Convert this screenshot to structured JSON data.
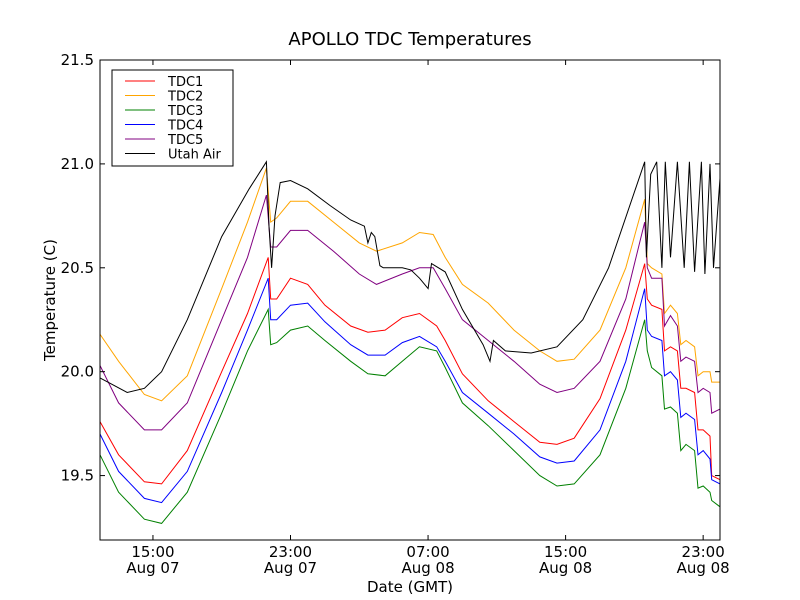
{
  "chart_data": {
    "type": "line",
    "title": "APOLLO TDC Temperatures",
    "xlabel": "Date (GMT)",
    "ylabel": "Temperature (C)",
    "x_units": "hours since Aug 07 00:00 GMT",
    "xlim": [
      11.92,
      47.98
    ],
    "ylim": [
      19.19,
      21.5
    ],
    "grid": false,
    "legend_position": "top-left",
    "x_ticks": [
      {
        "value": 15,
        "label_time": "15:00",
        "label_date": "Aug 07"
      },
      {
        "value": 23,
        "label_time": "23:00",
        "label_date": "Aug 07"
      },
      {
        "value": 31,
        "label_time": "07:00",
        "label_date": "Aug 08"
      },
      {
        "value": 39,
        "label_time": "15:00",
        "label_date": "Aug 08"
      },
      {
        "value": 47,
        "label_time": "23:00",
        "label_date": "Aug 08"
      }
    ],
    "y_ticks": [
      {
        "value": 19.5,
        "label": "19.5"
      },
      {
        "value": 20.0,
        "label": "20.0"
      },
      {
        "value": 20.5,
        "label": "20.5"
      },
      {
        "value": 21.0,
        "label": "21.0"
      },
      {
        "value": 21.5,
        "label": "21.5"
      }
    ],
    "series": [
      {
        "name": "TDC1",
        "color": "#ff0000",
        "x": [
          11.92,
          13.0,
          14.5,
          15.5,
          17.0,
          19.0,
          20.5,
          21.7,
          21.85,
          22.2,
          23.0,
          24.0,
          25.0,
          26.5,
          27.5,
          28.5,
          29.5,
          30.5,
          31.5,
          32.0,
          33.0,
          34.5,
          36.0,
          37.5,
          38.5,
          39.5,
          41.0,
          42.5,
          43.6,
          43.75,
          44.0,
          44.6,
          44.75,
          45.1,
          45.5,
          45.7,
          46.0,
          46.5,
          46.7,
          47.0,
          47.4,
          47.5,
          47.98
        ],
        "y": [
          19.76,
          19.6,
          19.47,
          19.46,
          19.62,
          20.0,
          20.28,
          20.55,
          20.35,
          20.35,
          20.45,
          20.42,
          20.32,
          20.22,
          20.19,
          20.2,
          20.26,
          20.28,
          20.22,
          20.15,
          19.99,
          19.86,
          19.76,
          19.66,
          19.65,
          19.68,
          19.87,
          20.2,
          20.52,
          20.35,
          20.32,
          20.3,
          20.1,
          20.12,
          20.1,
          19.92,
          19.92,
          19.9,
          19.72,
          19.72,
          19.69,
          19.5,
          19.48
        ]
      },
      {
        "name": "TDC2",
        "color": "#ffa500",
        "x": [
          11.92,
          13.0,
          14.5,
          15.5,
          17.0,
          19.0,
          20.5,
          21.6,
          21.85,
          22.2,
          23.0,
          24.0,
          25.5,
          27.0,
          28.0,
          29.5,
          30.5,
          31.3,
          32.0,
          33.0,
          34.5,
          36.0,
          37.5,
          38.5,
          39.5,
          41.0,
          42.5,
          43.6,
          43.75,
          44.0,
          44.6,
          44.75,
          45.1,
          45.5,
          45.7,
          46.0,
          46.5,
          46.7,
          47.0,
          47.4,
          47.5,
          47.98
        ],
        "y": [
          20.18,
          20.05,
          19.89,
          19.86,
          19.98,
          20.4,
          20.72,
          20.98,
          20.72,
          20.74,
          20.82,
          20.82,
          20.72,
          20.62,
          20.58,
          20.62,
          20.67,
          20.66,
          20.55,
          20.42,
          20.33,
          20.2,
          20.1,
          20.05,
          20.06,
          20.2,
          20.5,
          20.83,
          20.52,
          20.5,
          20.47,
          20.28,
          20.32,
          20.28,
          20.13,
          20.15,
          20.12,
          19.98,
          20.0,
          20.0,
          19.95,
          19.95
        ]
      },
      {
        "name": "TDC3",
        "color": "#008000",
        "x": [
          11.92,
          13.0,
          14.5,
          15.5,
          17.0,
          19.0,
          20.5,
          21.7,
          21.85,
          22.2,
          23.0,
          24.0,
          25.0,
          26.5,
          27.5,
          28.5,
          29.5,
          30.5,
          31.5,
          32.0,
          33.0,
          34.5,
          36.0,
          37.5,
          38.5,
          39.5,
          41.0,
          42.5,
          43.6,
          43.75,
          44.0,
          44.6,
          44.75,
          45.1,
          45.5,
          45.7,
          46.0,
          46.5,
          46.7,
          47.0,
          47.4,
          47.5,
          47.98
        ],
        "y": [
          19.6,
          19.42,
          19.29,
          19.27,
          19.42,
          19.8,
          20.1,
          20.3,
          20.13,
          20.14,
          20.2,
          20.22,
          20.15,
          20.05,
          19.99,
          19.98,
          20.05,
          20.12,
          20.1,
          20.02,
          19.85,
          19.74,
          19.62,
          19.5,
          19.45,
          19.46,
          19.6,
          19.92,
          20.25,
          20.1,
          20.02,
          19.98,
          19.82,
          19.83,
          19.8,
          19.62,
          19.65,
          19.62,
          19.44,
          19.45,
          19.42,
          19.38,
          19.35
        ]
      },
      {
        "name": "TDC4",
        "color": "#0000ff",
        "x": [
          11.92,
          13.0,
          14.5,
          15.5,
          17.0,
          19.0,
          20.5,
          21.7,
          21.85,
          22.2,
          23.0,
          24.0,
          25.0,
          26.5,
          27.5,
          28.5,
          29.5,
          30.5,
          31.5,
          32.0,
          33.0,
          34.5,
          36.0,
          37.5,
          38.5,
          39.5,
          41.0,
          42.5,
          43.6,
          43.75,
          44.0,
          44.6,
          44.75,
          45.1,
          45.5,
          45.7,
          46.0,
          46.5,
          46.7,
          47.0,
          47.4,
          47.5,
          47.98
        ],
        "y": [
          19.7,
          19.52,
          19.39,
          19.37,
          19.52,
          19.9,
          20.2,
          20.45,
          20.25,
          20.25,
          20.32,
          20.33,
          20.24,
          20.13,
          20.08,
          20.08,
          20.14,
          20.17,
          20.12,
          20.05,
          19.9,
          19.8,
          19.7,
          19.59,
          19.56,
          19.57,
          19.72,
          20.05,
          20.4,
          20.2,
          20.17,
          20.15,
          19.98,
          20.0,
          19.96,
          19.78,
          19.8,
          19.77,
          19.6,
          19.62,
          19.58,
          19.48,
          19.46
        ]
      },
      {
        "name": "TDC5",
        "color": "#800080",
        "x": [
          11.92,
          13.0,
          14.5,
          15.5,
          17.0,
          19.0,
          20.5,
          21.6,
          21.85,
          22.2,
          23.0,
          24.0,
          25.5,
          27.0,
          28.0,
          29.5,
          30.5,
          31.3,
          32.0,
          33.0,
          34.5,
          36.0,
          37.5,
          38.5,
          39.5,
          41.0,
          42.5,
          43.6,
          43.75,
          44.0,
          44.6,
          44.75,
          45.1,
          45.5,
          45.7,
          46.0,
          46.5,
          46.7,
          47.0,
          47.4,
          47.5,
          47.98
        ],
        "y": [
          20.03,
          19.85,
          19.72,
          19.72,
          19.85,
          20.25,
          20.55,
          20.85,
          20.6,
          20.6,
          20.68,
          20.68,
          20.58,
          20.47,
          20.42,
          20.47,
          20.5,
          20.5,
          20.4,
          20.25,
          20.15,
          20.05,
          19.94,
          19.9,
          19.92,
          20.05,
          20.35,
          20.72,
          20.5,
          20.45,
          20.45,
          20.22,
          20.27,
          20.22,
          20.05,
          20.07,
          20.05,
          19.9,
          19.92,
          19.9,
          19.8,
          19.82
        ]
      },
      {
        "name": "Utah Air",
        "color": "#000000",
        "x": [
          11.92,
          13.5,
          14.5,
          15.5,
          17.0,
          19.0,
          20.6,
          21.6,
          21.75,
          21.9,
          22.1,
          22.4,
          23.0,
          24.0,
          25.3,
          26.5,
          27.3,
          27.5,
          27.7,
          27.9,
          28.2,
          28.4,
          29.5,
          30.0,
          30.5,
          31.0,
          31.2,
          32.0,
          33.0,
          34.2,
          34.6,
          34.8,
          35.5,
          37.0,
          38.5,
          40.0,
          41.5,
          43.6,
          43.7,
          43.95,
          44.3,
          44.6,
          44.8,
          45.1,
          45.5,
          45.9,
          46.2,
          46.5,
          46.9,
          47.1,
          47.4,
          47.6,
          47.98
        ],
        "y": [
          19.97,
          19.9,
          19.92,
          20.0,
          20.25,
          20.65,
          20.88,
          21.01,
          20.7,
          20.5,
          20.75,
          20.91,
          20.92,
          20.88,
          20.8,
          20.73,
          20.7,
          20.62,
          20.67,
          20.65,
          20.51,
          20.5,
          20.5,
          20.49,
          20.45,
          20.4,
          20.52,
          20.48,
          20.3,
          20.13,
          20.05,
          20.15,
          20.1,
          20.09,
          20.12,
          20.25,
          20.5,
          21.01,
          20.55,
          20.95,
          21.01,
          20.5,
          21.01,
          20.55,
          21.01,
          20.5,
          21.01,
          20.48,
          21.01,
          20.47,
          21.0,
          20.5,
          20.93
        ]
      }
    ]
  }
}
